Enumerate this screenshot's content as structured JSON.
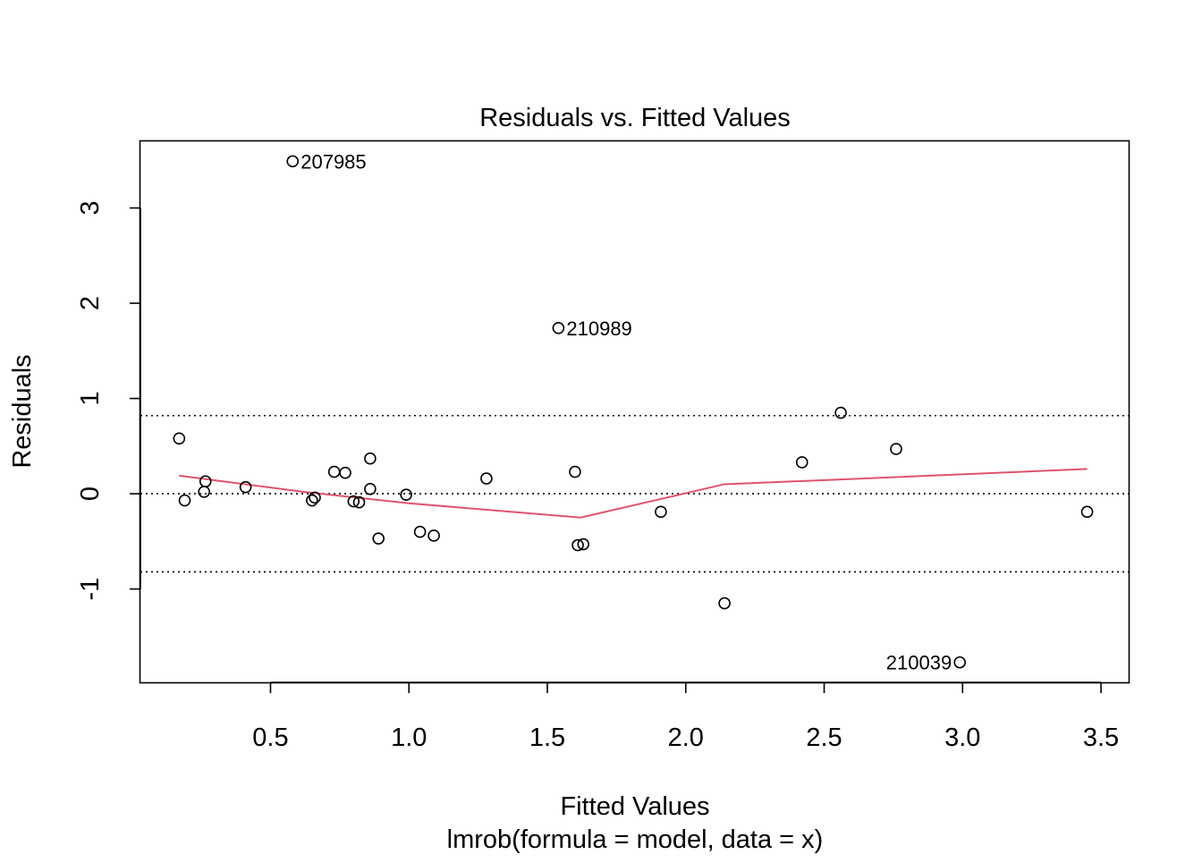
{
  "chart_data": {
    "type": "scatter",
    "title": "Residuals vs. Fitted Values",
    "xlabel": "Fitted Values",
    "subtitle": "lmrob(formula = model, data = x)",
    "ylabel": "Residuals",
    "xlim": [
      0.03,
      3.6
    ],
    "ylim": [
      -1.98,
      3.7
    ],
    "x_ticks": [
      0.5,
      1.0,
      1.5,
      2.0,
      2.5,
      3.0,
      3.5
    ],
    "x_tick_labels": [
      "0.5",
      "1.0",
      "1.5",
      "2.0",
      "2.5",
      "3.0",
      "3.5"
    ],
    "y_ticks": [
      -1,
      0,
      1,
      2,
      3
    ],
    "y_tick_labels": [
      "-1",
      "0",
      "1",
      "2",
      "3"
    ],
    "grid": false,
    "points": [
      {
        "x": 0.17,
        "y": 0.58
      },
      {
        "x": 0.19,
        "y": -0.07
      },
      {
        "x": 0.26,
        "y": 0.02
      },
      {
        "x": 0.265,
        "y": 0.13
      },
      {
        "x": 0.41,
        "y": 0.07
      },
      {
        "x": 0.58,
        "y": 3.49,
        "label": "207985"
      },
      {
        "x": 0.65,
        "y": -0.07
      },
      {
        "x": 0.66,
        "y": -0.04
      },
      {
        "x": 0.73,
        "y": 0.23
      },
      {
        "x": 0.77,
        "y": 0.22
      },
      {
        "x": 0.8,
        "y": -0.08
      },
      {
        "x": 0.82,
        "y": -0.09
      },
      {
        "x": 0.86,
        "y": 0.37
      },
      {
        "x": 0.86,
        "y": 0.05
      },
      {
        "x": 0.89,
        "y": -0.47
      },
      {
        "x": 0.99,
        "y": -0.01
      },
      {
        "x": 1.04,
        "y": -0.4
      },
      {
        "x": 1.09,
        "y": -0.44
      },
      {
        "x": 1.28,
        "y": 0.16
      },
      {
        "x": 1.54,
        "y": 1.74,
        "label": "210989"
      },
      {
        "x": 1.6,
        "y": 0.23
      },
      {
        "x": 1.61,
        "y": -0.54
      },
      {
        "x": 1.63,
        "y": -0.53
      },
      {
        "x": 1.91,
        "y": -0.19
      },
      {
        "x": 2.14,
        "y": -1.15
      },
      {
        "x": 2.42,
        "y": 0.33
      },
      {
        "x": 2.56,
        "y": 0.85
      },
      {
        "x": 2.76,
        "y": 0.47
      },
      {
        "x": 2.99,
        "y": -1.77,
        "label": "210039",
        "label_side": "left"
      },
      {
        "x": 3.45,
        "y": -0.19
      }
    ],
    "smooth_line": {
      "color": "#DF536B",
      "points": [
        {
          "x": 0.17,
          "y": 0.19
        },
        {
          "x": 0.62,
          "y": 0.02
        },
        {
          "x": 1.0,
          "y": -0.1
        },
        {
          "x": 1.62,
          "y": -0.25
        },
        {
          "x": 2.14,
          "y": 0.1
        },
        {
          "x": 2.56,
          "y": 0.15
        },
        {
          "x": 3.45,
          "y": 0.26
        }
      ]
    },
    "reference_lines": {
      "style": "dotted",
      "y_values": [
        0.82,
        0,
        -0.82
      ]
    }
  }
}
